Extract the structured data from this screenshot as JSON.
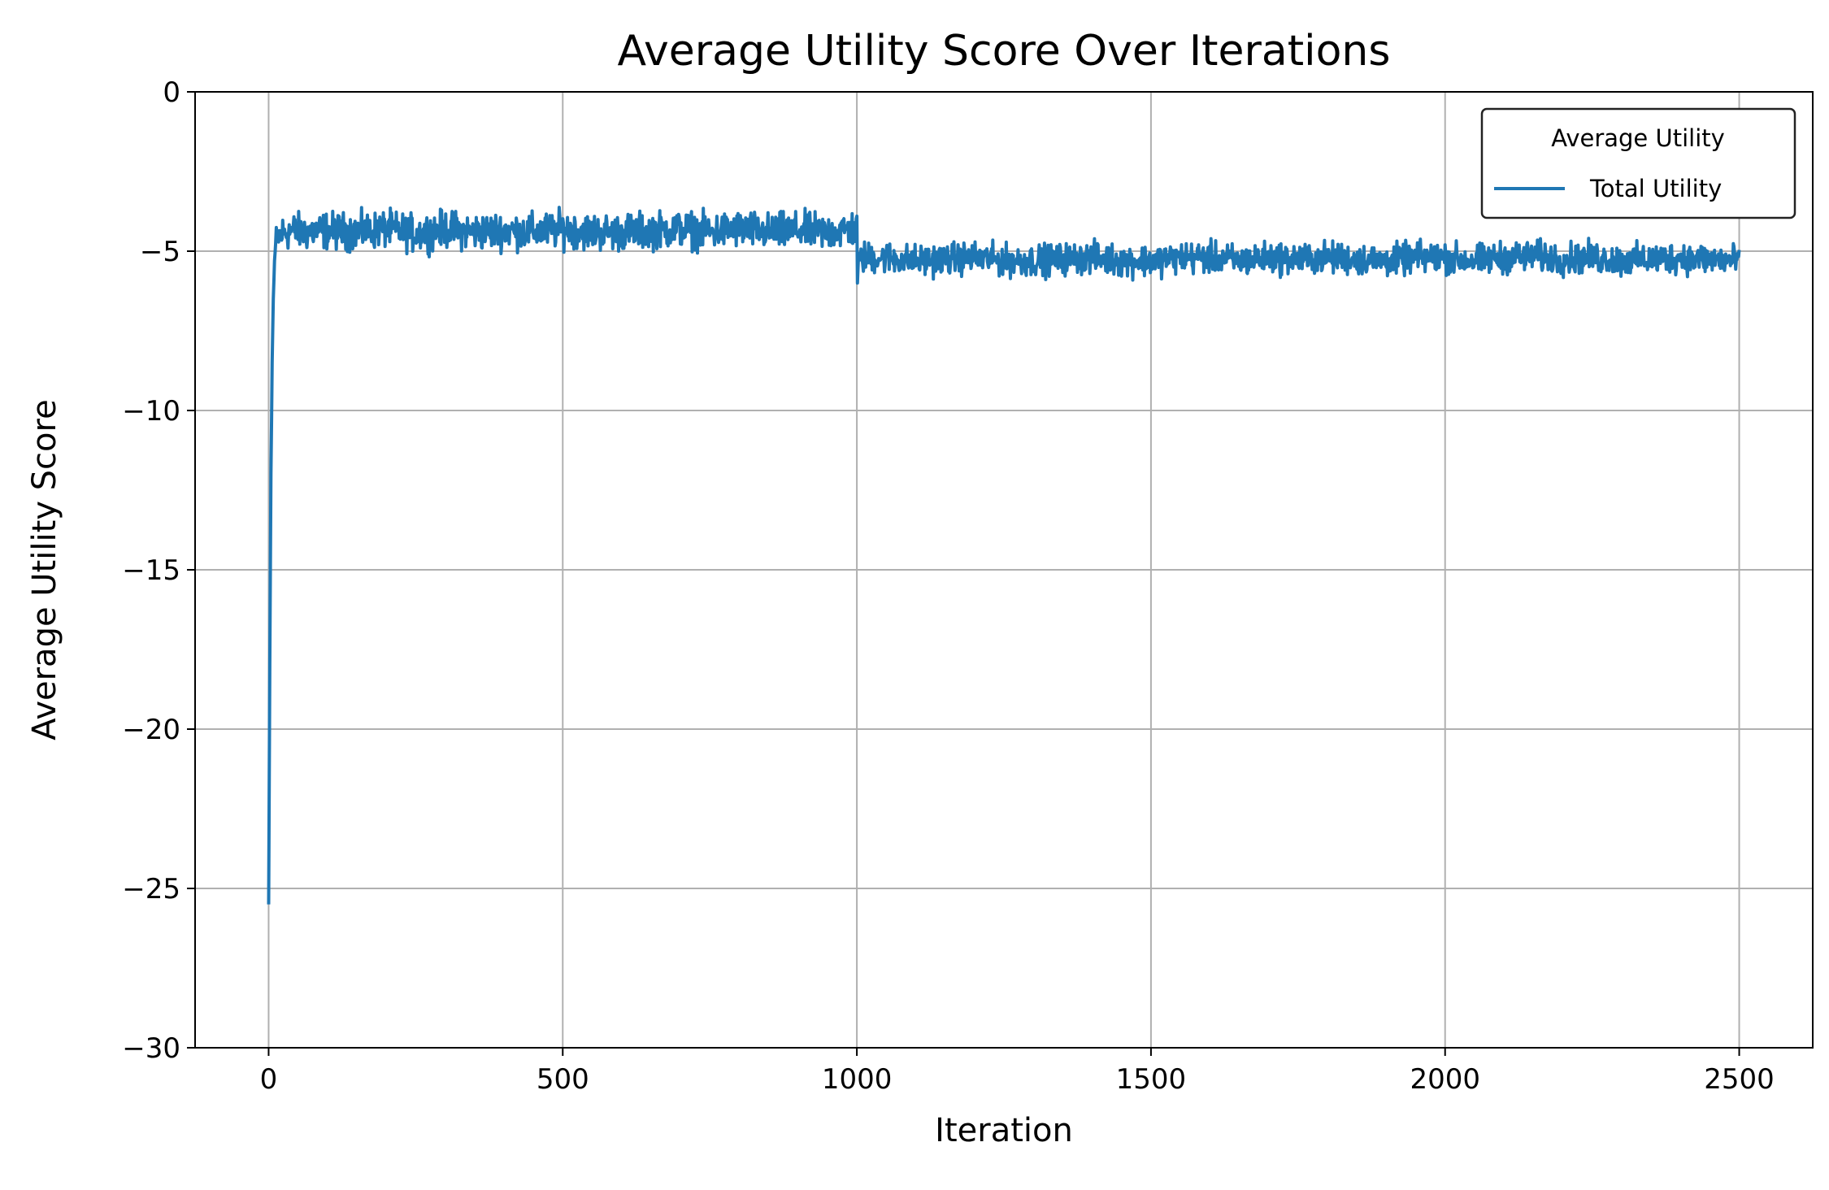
{
  "chart_data": {
    "type": "line",
    "title": "Average Utility Score Over Iterations",
    "xlabel": "Iteration",
    "ylabel": "Average Utility Score",
    "xlim": [
      -125,
      2625
    ],
    "ylim": [
      -30,
      0
    ],
    "xticks": [
      0,
      500,
      1000,
      1500,
      2000,
      2500
    ],
    "yticks": [
      0,
      -5,
      -10,
      -15,
      -20,
      -25,
      -30
    ],
    "xtick_labels": [
      "0",
      "500",
      "1000",
      "1500",
      "2000",
      "2500"
    ],
    "ytick_labels": [
      "0",
      "−5",
      "−10",
      "−15",
      "−20",
      "−25",
      "−30"
    ],
    "grid": true,
    "legend": {
      "title": "Average Utility",
      "placement": "top-right"
    },
    "series": [
      {
        "name": "Total Utility",
        "color": "#1f77b4",
        "x": [
          0,
          2,
          4,
          6,
          8,
          10,
          12,
          15,
          20,
          25,
          30,
          40,
          60,
          100,
          150,
          200,
          250,
          300,
          350,
          400,
          450,
          500,
          550,
          600,
          650,
          700,
          750,
          800,
          850,
          900,
          950,
          995,
          1000,
          1001,
          1005,
          1010,
          1050,
          1100,
          1150,
          1200,
          1250,
          1300,
          1350,
          1400,
          1450,
          1500,
          1550,
          1600,
          1650,
          1700,
          1750,
          1800,
          1850,
          1900,
          1950,
          2000,
          2050,
          2100,
          2150,
          2200,
          2250,
          2300,
          2350,
          2400,
          2450,
          2500
        ],
        "values": [
          -25.5,
          -18.0,
          -12.0,
          -8.5,
          -6.5,
          -5.3,
          -4.8,
          -4.6,
          -4.5,
          -4.4,
          -4.4,
          -4.35,
          -4.4,
          -4.35,
          -4.4,
          -4.3,
          -4.45,
          -4.3,
          -4.4,
          -4.35,
          -4.4,
          -4.3,
          -4.4,
          -4.4,
          -4.35,
          -4.3,
          -4.4,
          -4.3,
          -4.4,
          -4.35,
          -4.4,
          -4.3,
          -4.4,
          -5.6,
          -5.3,
          -5.2,
          -5.2,
          -5.3,
          -5.25,
          -5.2,
          -5.3,
          -5.3,
          -5.25,
          -5.2,
          -5.3,
          -5.3,
          -5.2,
          -5.2,
          -5.3,
          -5.2,
          -5.25,
          -5.2,
          -5.25,
          -5.3,
          -5.2,
          -5.2,
          -5.3,
          -5.2,
          -5.15,
          -5.25,
          -5.2,
          -5.3,
          -5.25,
          -5.2,
          -5.25,
          -5.3
        ],
        "noise_band": [
          [
            12,
            1000,
            0.28
          ],
          [
            1001,
            2500,
            0.24
          ]
        ]
      }
    ]
  }
}
